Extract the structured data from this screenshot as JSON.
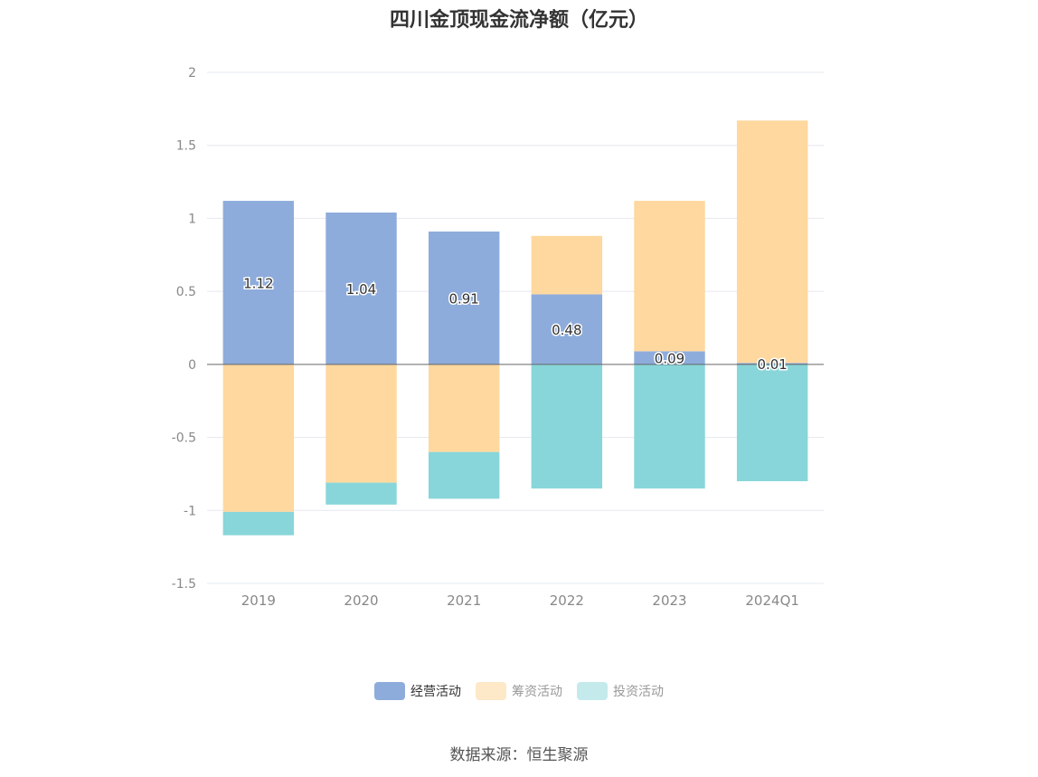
{
  "chart_data": {
    "type": "bar",
    "stacked": true,
    "title": "四川金顶现金流净额（亿元）",
    "xlabel": "",
    "ylabel": "",
    "categories": [
      "2019",
      "2020",
      "2021",
      "2022",
      "2023",
      "2024Q1"
    ],
    "ylim": [
      -1.5,
      2
    ],
    "yticks": [
      "2",
      "1.5",
      "1",
      "0.5",
      "0",
      "-0.5",
      "-1",
      "-1.5"
    ],
    "grid": true,
    "legend_position": "bottom",
    "series": [
      {
        "name": "经营活动",
        "color": "#8eacdb",
        "legend_color": "#8eacdb",
        "values": [
          1.12,
          1.04,
          0.91,
          0.48,
          0.09,
          0.01
        ],
        "labels_shown": true,
        "value_labels": [
          "1.12",
          "1.04",
          "0.91",
          "0.48",
          "0.09",
          "0.01"
        ]
      },
      {
        "name": "筹资活动",
        "color": "#fed89e",
        "legend_color": "#fde8c8",
        "values": [
          -1.01,
          -0.81,
          -0.6,
          0.4,
          1.03,
          1.66
        ],
        "labels_shown": false
      },
      {
        "name": "投资活动",
        "color": "#88d6d9",
        "legend_color": "#c4eaec",
        "values": [
          -0.16,
          -0.15,
          -0.32,
          -0.85,
          -0.85,
          -0.8
        ],
        "labels_shown": false
      }
    ]
  },
  "source": "数据来源：恒生聚源"
}
